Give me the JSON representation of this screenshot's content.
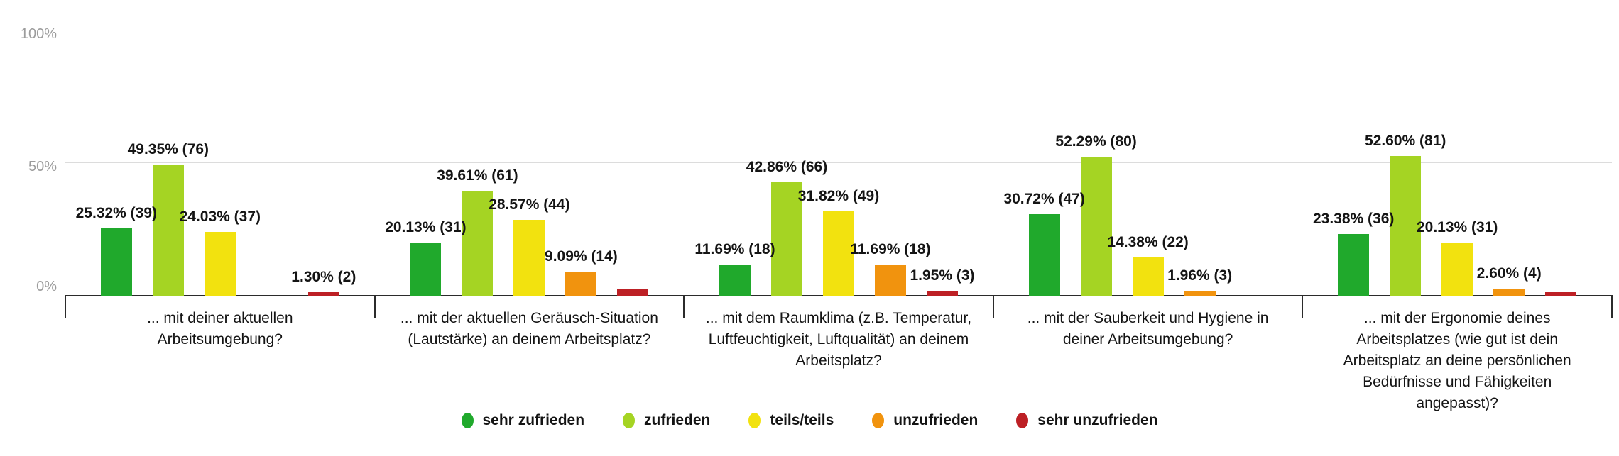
{
  "chart_data": {
    "type": "bar",
    "title": "",
    "xlabel": "",
    "ylabel": "",
    "ylim": [
      0,
      100
    ],
    "yticks": [
      {
        "label": "100%",
        "value": 100
      },
      {
        "label": "50%",
        "value": 50
      },
      {
        "label": "0%",
        "value": 0
      }
    ],
    "grid": "horizontal",
    "legend_position": "bottom-center",
    "categories": [
      "... mit deiner aktuellen Arbeitsumgebung?",
      "... mit der aktuellen Geräusch-Situation (Lautstärke) an deinem Arbeitsplatz?",
      "... mit dem Raumklima (z.B. Temperatur, Luftfeuchtigkeit, Luftqualität) an deinem Arbeitsplatz?",
      "... mit der Sauberkeit und Hygiene in deiner Arbeitsumgebung?",
      "... mit der Ergonomie deines Arbeitsplatzes (wie gut ist dein Arbeitsplatz an deine persönlichen Bedürfnisse und Fähigkeiten angepasst)?"
    ],
    "series": [
      {
        "name": "sehr zufrieden",
        "color": "#20A92C",
        "values": [
          25.32,
          20.13,
          11.69,
          30.72,
          23.38
        ],
        "labels": [
          "25.32% (39)",
          "20.13% (31)",
          "11.69% (18)",
          "30.72% (47)",
          "23.38% (36)"
        ]
      },
      {
        "name": "zufrieden",
        "color": "#A5D423",
        "values": [
          49.35,
          39.61,
          42.86,
          52.29,
          52.6
        ],
        "labels": [
          "49.35% (76)",
          "39.61% (61)",
          "42.86% (66)",
          "52.29% (80)",
          "52.60% (81)"
        ]
      },
      {
        "name": "teils/teils",
        "color": "#F2E20F",
        "values": [
          24.03,
          28.57,
          31.82,
          14.38,
          20.13
        ],
        "labels": [
          "24.03% (37)",
          "28.57% (44)",
          "31.82% (49)",
          "14.38% (22)",
          "20.13% (31)"
        ]
      },
      {
        "name": "unzufrieden",
        "color": "#F1930E",
        "values": [
          0,
          9.09,
          11.69,
          1.96,
          2.6
        ],
        "labels": [
          "",
          "9.09% (14)",
          "11.69% (18)",
          "1.96% (3)",
          "2.60% (4)"
        ]
      },
      {
        "name": "sehr unzufrieden",
        "color": "#BD2025",
        "values": [
          1.3,
          2.6,
          1.95,
          0,
          1.3
        ],
        "labels": [
          "1.30% (2)",
          "",
          "1.95% (3)",
          "",
          ""
        ]
      }
    ]
  },
  "layout_colors": {
    "gridline": "#dcdcdc",
    "axis": "#2b2b2b",
    "ytick_text": "#9c9c9c",
    "label_text": "#141414"
  }
}
